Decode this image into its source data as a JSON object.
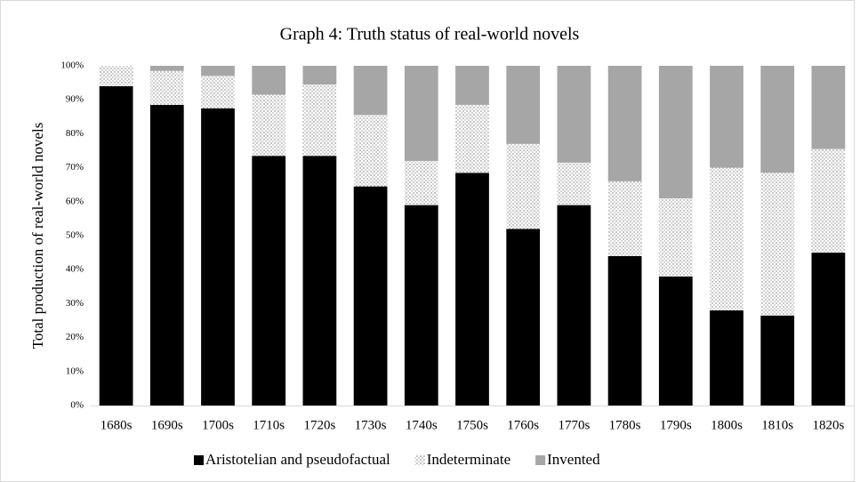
{
  "chart_data": {
    "type": "stacked_bar",
    "title": "Graph 4:  Truth status of real-world novels",
    "y_axis_label": "Total production of real-world novels",
    "categories": [
      "1680s",
      "1690s",
      "1700s",
      "1710s",
      "1720s",
      "1730s",
      "1740s",
      "1750s",
      "1760s",
      "1770s",
      "1780s",
      "1790s",
      "1800s",
      "1810s",
      "1820s"
    ],
    "series": [
      {
        "name": "Aristotelian and pseudofactual",
        "color": "#000000",
        "values": [
          94,
          88.5,
          87.5,
          73.5,
          73.5,
          64.5,
          59,
          68.5,
          52,
          59,
          44,
          38,
          28,
          26.5,
          45
        ]
      },
      {
        "name": "Indeterminate",
        "color": "#ffffff",
        "pattern": "dotted",
        "values": [
          6,
          10,
          9.5,
          18,
          21,
          21,
          13,
          20,
          25,
          12.5,
          22,
          23,
          42,
          42,
          30.5
        ]
      },
      {
        "name": "Invented",
        "color": "#a6a6a6",
        "values": [
          0,
          1.5,
          3,
          8.5,
          5.5,
          14.5,
          28,
          11.5,
          23,
          28.5,
          34,
          39,
          30,
          31.5,
          24.5
        ]
      }
    ],
    "ylim": [
      0,
      100
    ],
    "yticks": [
      {
        "value": 0,
        "label": "0%"
      },
      {
        "value": 10,
        "label": "10%"
      },
      {
        "value": 20,
        "label": "20%"
      },
      {
        "value": 30,
        "label": "30%"
      },
      {
        "value": 40,
        "label": "40%"
      },
      {
        "value": 50,
        "label": "50%"
      },
      {
        "value": 60,
        "label": "60%"
      },
      {
        "value": 70,
        "label": "70%"
      },
      {
        "value": 80,
        "label": "80%"
      },
      {
        "value": 90,
        "label": "90%"
      },
      {
        "value": 100,
        "label": "100%"
      }
    ],
    "grid": false,
    "legend": "bottom"
  }
}
